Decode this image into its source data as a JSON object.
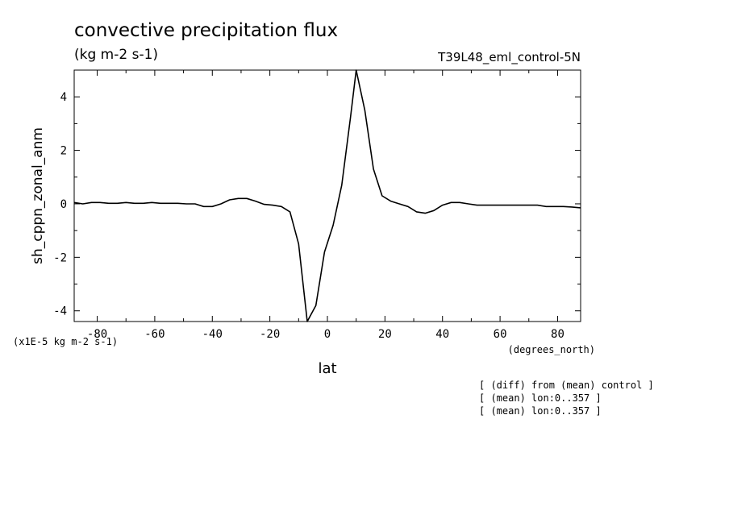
{
  "chart_data": {
    "type": "line",
    "title": "convective precipitation flux",
    "units": "(kg m-2 s-1)",
    "run_label": "T39L48_eml_control-5N",
    "ylabel": "sh_cppn_zonal_anm",
    "xlabel": "lat",
    "x_units": "(degrees_north)",
    "y_scale_note": "(x1E-5 kg m-2 s-1)",
    "xlim": [
      -88,
      88
    ],
    "ylim": [
      -4.4,
      5.0
    ],
    "x_ticks": [
      -80,
      -60,
      -40,
      -20,
      0,
      20,
      40,
      60,
      80
    ],
    "x_tick_labels": [
      "-80",
      "-60",
      "-40",
      "-20",
      "0",
      "20",
      "40",
      "60",
      "80"
    ],
    "y_ticks": [
      -4,
      -2,
      0,
      2,
      4
    ],
    "y_tick_labels": [
      "-4",
      "-2",
      "0",
      "2",
      "4"
    ],
    "grid": false,
    "series": [
      {
        "color": "#000000",
        "x": [
          -88,
          -85,
          -82,
          -79,
          -76,
          -73,
          -70,
          -67,
          -64,
          -61,
          -58,
          -55,
          -52,
          -49,
          -46,
          -43,
          -40,
          -37,
          -34,
          -31,
          -28,
          -25,
          -22,
          -19,
          -16,
          -13,
          -10,
          -7,
          -4,
          -1,
          2,
          5,
          8,
          10,
          13,
          16,
          19,
          22,
          25,
          28,
          31,
          34,
          37,
          40,
          43,
          46,
          49,
          52,
          55,
          58,
          61,
          64,
          67,
          70,
          73,
          76,
          79,
          82,
          85,
          88
        ],
        "y": [
          0.05,
          0.0,
          0.05,
          0.05,
          0.02,
          0.02,
          0.05,
          0.02,
          0.02,
          0.05,
          0.02,
          0.02,
          0.02,
          0.0,
          0.0,
          -0.1,
          -0.1,
          0.0,
          0.15,
          0.2,
          0.2,
          0.1,
          -0.02,
          -0.05,
          -0.1,
          -0.3,
          -1.5,
          -4.4,
          -3.8,
          -1.8,
          -0.8,
          0.7,
          3.2,
          5.0,
          3.5,
          1.3,
          0.3,
          0.1,
          0.0,
          -0.1,
          -0.3,
          -0.35,
          -0.25,
          -0.05,
          0.05,
          0.05,
          0.0,
          -0.05,
          -0.05,
          -0.05,
          -0.05,
          -0.05,
          -0.05,
          -0.05,
          -0.05,
          -0.1,
          -0.1,
          -0.1,
          -0.12,
          -0.15
        ]
      }
    ]
  },
  "notes": [
    "[ (diff) from (mean) control ]",
    "[ (mean) lon:0..357 ]",
    "[ (mean) lon:0..357 ]"
  ]
}
